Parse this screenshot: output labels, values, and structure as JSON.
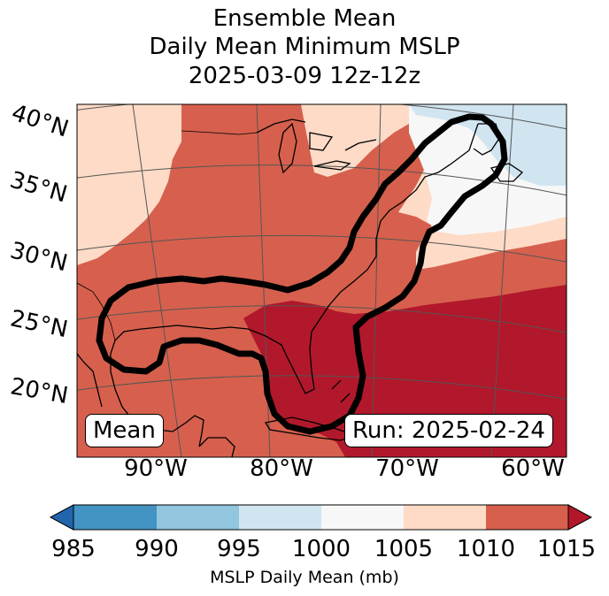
{
  "title": {
    "line1": "Ensemble Mean",
    "line2": "Daily Mean Minimum MSLP",
    "line3": "2025-03-09 12z-12z"
  },
  "map": {
    "lat_labels": [
      "40°N",
      "35°N",
      "30°N",
      "25°N",
      "20°N"
    ],
    "lon_labels": [
      "90°W",
      "80°W",
      "70°W",
      "60°W"
    ],
    "left_box": "Mean",
    "right_box": "Run: 2025-02-24"
  },
  "colorbar": {
    "ticks": [
      "985",
      "990",
      "995",
      "1000",
      "1005",
      "1010",
      "1015"
    ],
    "label": "MSLP Daily Mean (mb)",
    "colors": [
      "#2166ac",
      "#4393c3",
      "#92c5de",
      "#d1e5f0",
      "#f7f7f7",
      "#fddbc7",
      "#d6604d",
      "#b2182b"
    ]
  }
}
